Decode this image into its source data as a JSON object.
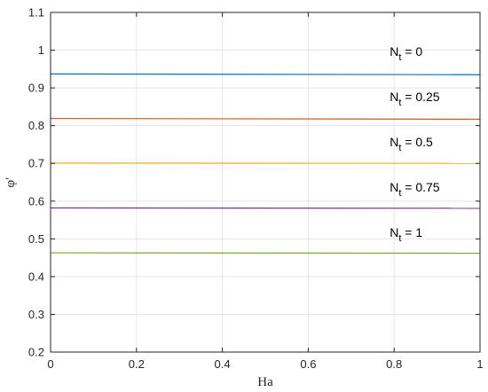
{
  "chart_data": {
    "type": "line",
    "xlabel": "Ha",
    "ylabel": "φ′",
    "xlim": [
      0,
      1
    ],
    "ylim": [
      0.2,
      1.1
    ],
    "xticks": [
      "0",
      "0.2",
      "0.4",
      "0.6",
      "0.8",
      "1"
    ],
    "yticks": [
      "0.2",
      "0.3",
      "0.4",
      "0.5",
      "0.6",
      "0.7",
      "0.8",
      "0.9",
      "1",
      "1.1"
    ],
    "grid": true,
    "x": [
      0,
      1
    ],
    "series": [
      {
        "values": [
          0.937,
          0.935
        ],
        "color": "#0072BD"
      },
      {
        "values": [
          0.819,
          0.817
        ],
        "color": "#D95319"
      },
      {
        "values": [
          0.701,
          0.7
        ],
        "color": "#EDB120"
      },
      {
        "values": [
          0.582,
          0.581
        ],
        "color": "#7E2F8E"
      },
      {
        "values": [
          0.463,
          0.462
        ],
        "color": "#77AC30"
      }
    ],
    "annotations": [
      {
        "main": "N",
        "sub": "t",
        "rest": " = 0",
        "x": 0.8,
        "y": 0.985
      },
      {
        "main": "N",
        "sub": "t",
        "rest": " = 0.25",
        "x": 0.8,
        "y": 0.865
      },
      {
        "main": "N",
        "sub": "t",
        "rest": " = 0.5",
        "x": 0.8,
        "y": 0.745
      },
      {
        "main": "N",
        "sub": "t",
        "rest": " = 0.75",
        "x": 0.8,
        "y": 0.625
      },
      {
        "main": "N",
        "sub": "t",
        "rest": " = 1",
        "x": 0.8,
        "y": 0.505
      }
    ]
  }
}
